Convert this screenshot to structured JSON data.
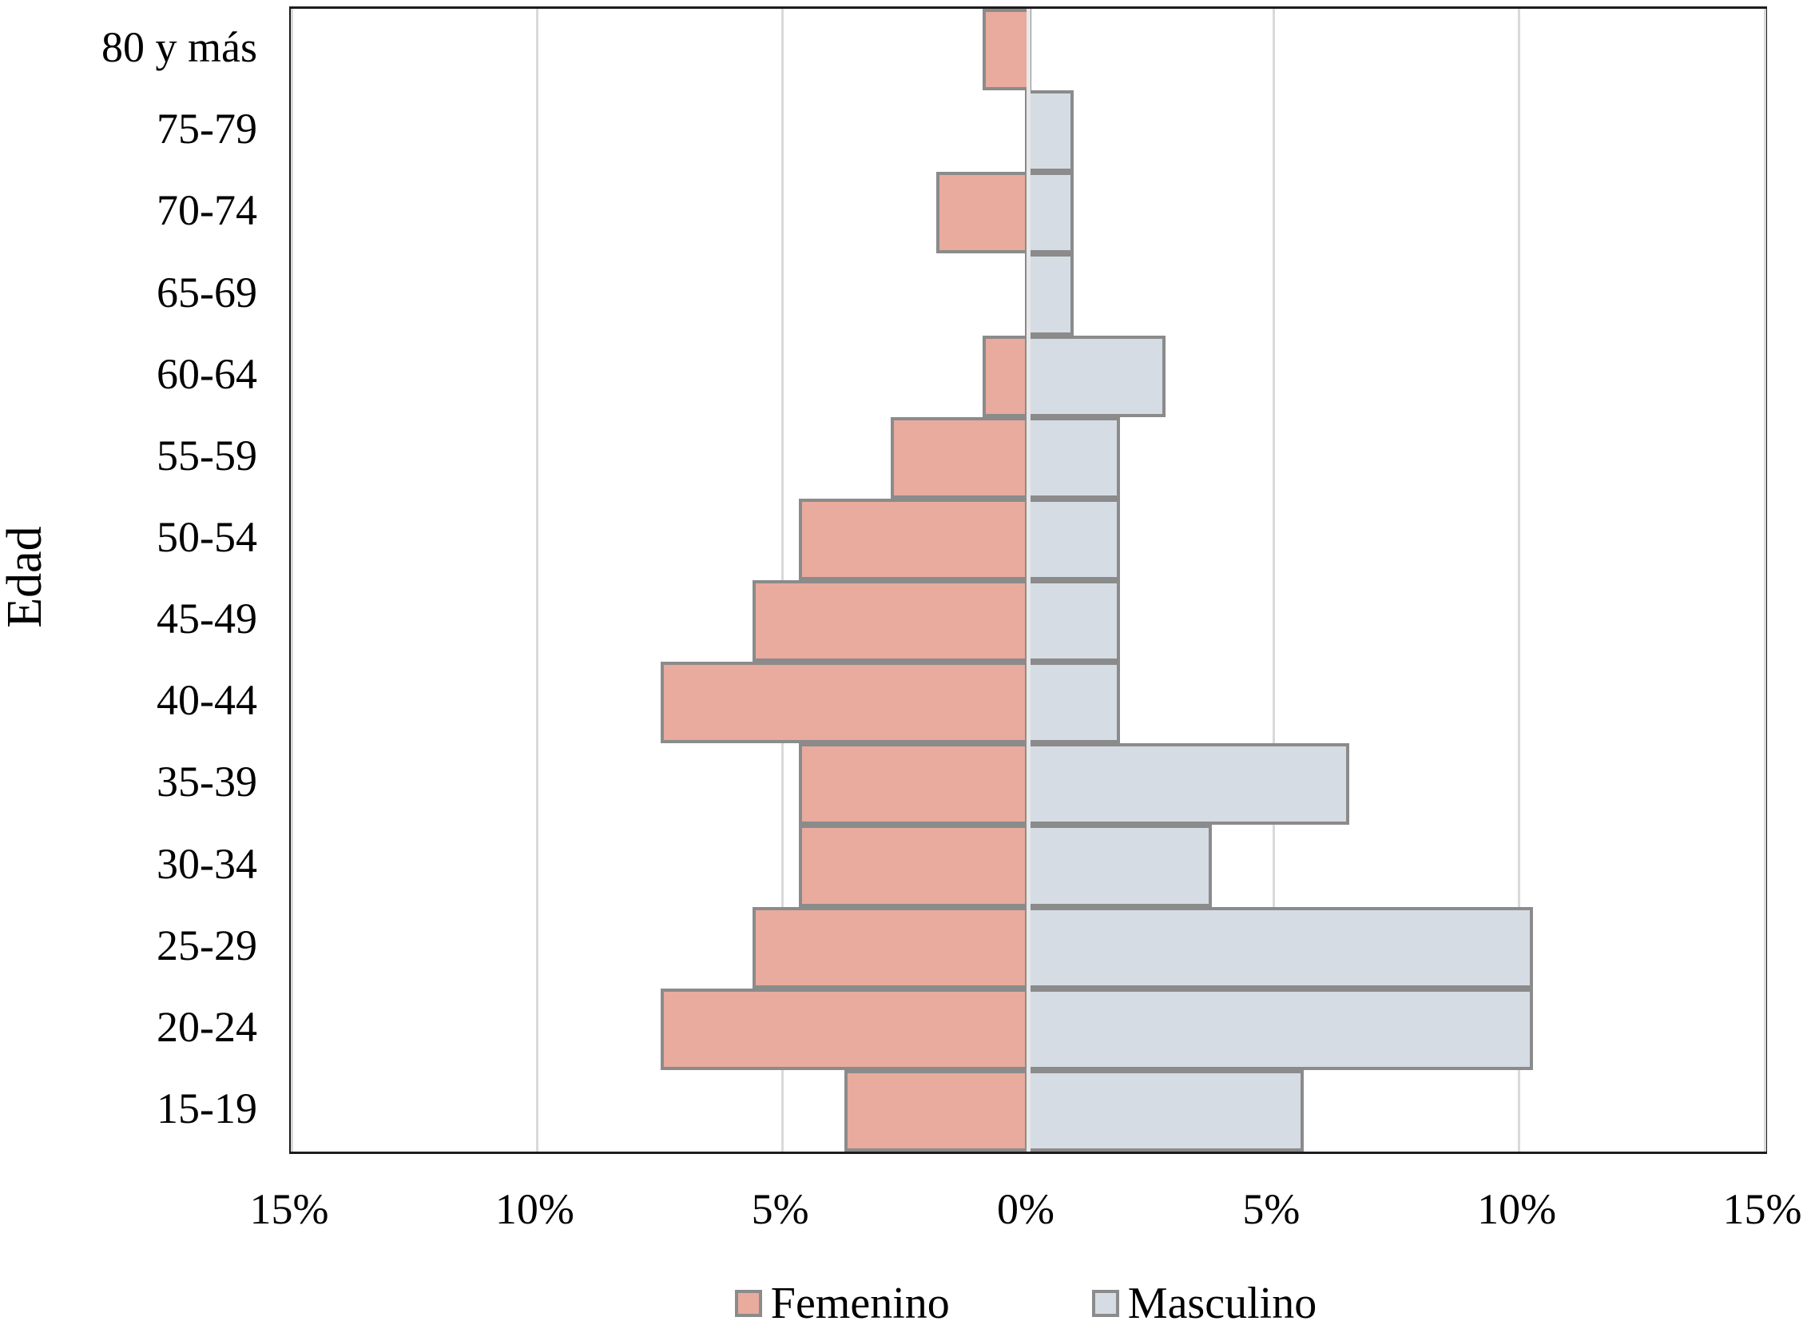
{
  "chart_data": {
    "type": "bar",
    "subtype": "population-pyramid",
    "title": "",
    "ylabel": "Edad",
    "xlabel": "",
    "grid": true,
    "categories_top_to_bottom": [
      "80 y más",
      "75-79",
      "70-74",
      "65-69",
      "60-64",
      "55-59",
      "50-54",
      "45-49",
      "40-44",
      "35-39",
      "30-34",
      "25-29",
      "20-24",
      "15-19"
    ],
    "series": [
      {
        "name": "Femenino",
        "side": "left",
        "color": "#e8ab9d",
        "values_pct_top_to_bottom": [
          0.93,
          0,
          1.87,
          0,
          0.93,
          2.8,
          4.67,
          5.61,
          7.48,
          4.67,
          4.67,
          5.61,
          7.48,
          3.74
        ]
      },
      {
        "name": "Masculino",
        "side": "right",
        "color": "#d6dce4",
        "values_pct_top_to_bottom": [
          0,
          0.93,
          0.93,
          0.93,
          2.8,
          1.87,
          1.87,
          1.87,
          1.87,
          6.54,
          3.74,
          10.28,
          10.28,
          5.61
        ]
      }
    ],
    "x_axis": {
      "tick_labels": [
        "15%",
        "10%",
        "5%",
        "0%",
        "5%",
        "10%",
        "15%"
      ],
      "tick_values_pct": [
        -15,
        -10,
        -5,
        0,
        5,
        10,
        15
      ],
      "max_abs_pct": 15
    },
    "legend_position": "bottom"
  },
  "colors": {
    "female_fill": "#e8ab9d",
    "male_fill": "#d6dce4",
    "bar_border": "#8b8b8b",
    "gridline": "#d9d9d9",
    "plot_border": "#1d1d1d",
    "center_axis_band": "#e7e7e7",
    "background": "#ffffff",
    "text": "#000000"
  }
}
